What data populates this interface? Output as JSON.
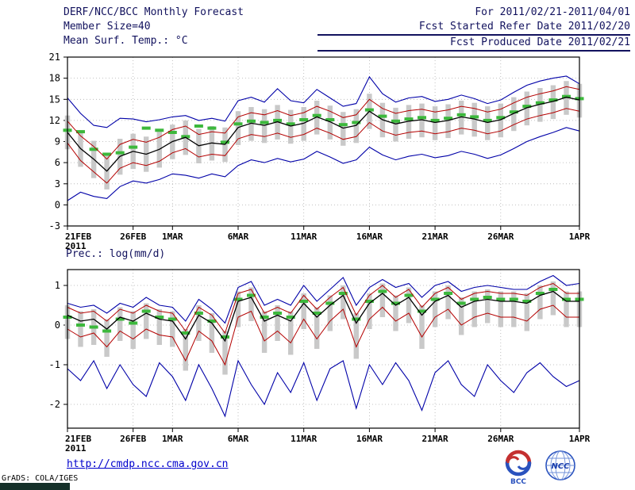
{
  "header": {
    "title": "DERF/NCC/BCC Monthly Forecast",
    "member_size": "Member Size=40",
    "temp_label": "Mean Surf. Temp.: °C",
    "for_range": "For 2011/02/21-2011/04/01",
    "refer_date": "Fcst Started Refer Date 2011/02/20",
    "produced_date": "Fcst Produced Date 2011/02/21"
  },
  "footer": {
    "url": "http://cmdp.ncc.cma.gov.cn",
    "credit": "GrADS: COLA/IGES",
    "bcc_logo_label": "BCC",
    "ncc_logo_label": "NCC"
  },
  "colors": {
    "ensemble_min_max": "#0000a8",
    "sigma_band": "#b40000",
    "ensemble_mean": "#000000",
    "reference_dash": "#3cb83c",
    "spread_bar": "#c9c9c9",
    "header_text": "#12125e",
    "link": "#0000cc"
  },
  "chart_data": [
    {
      "type": "line",
      "title": "Mean Surf. Temp.: °C",
      "xlabel": "",
      "ylabel": "°C",
      "ylim": [
        -3,
        21
      ],
      "yticks": [
        -3,
        0,
        3,
        6,
        9,
        12,
        15,
        18,
        21
      ],
      "grid": true,
      "n_days": 40,
      "x_tick_days": [
        0,
        5,
        8,
        13,
        18,
        23,
        28,
        33,
        39
      ],
      "x_tick_labels": [
        "21FEB",
        "26FEB",
        "1MAR",
        "6MAR",
        "11MAR",
        "16MAR",
        "21MAR",
        "26MAR",
        "1APR"
      ],
      "x_sub_label": "2011",
      "series": [
        {
          "name": "ensemble-max",
          "color": "#0000a8",
          "values": [
            15.2,
            13.0,
            11.3,
            11.0,
            12.3,
            12.2,
            11.8,
            12.1,
            12.5,
            12.7,
            12.0,
            12.3,
            11.9,
            14.8,
            15.3,
            14.6,
            16.5,
            14.8,
            14.5,
            16.4,
            15.2,
            14.0,
            14.4,
            18.2,
            15.8,
            14.6,
            15.2,
            15.4,
            14.7,
            15.0,
            15.6,
            15.1,
            14.4,
            14.9,
            16.0,
            17.0,
            17.6,
            18.0,
            18.3,
            17.2
          ]
        },
        {
          "name": "plus-sigma",
          "color": "#b40000",
          "values": [
            11.9,
            9.8,
            8.3,
            6.5,
            8.6,
            9.3,
            8.9,
            9.6,
            10.7,
            11.2,
            10.0,
            10.4,
            10.2,
            12.5,
            13.1,
            12.8,
            13.4,
            12.7,
            13.1,
            14.0,
            13.3,
            12.4,
            12.8,
            15.0,
            13.7,
            13.0,
            13.4,
            13.6,
            13.2,
            13.5,
            14.0,
            13.7,
            13.2,
            13.6,
            14.5,
            15.3,
            15.8,
            16.2,
            16.8,
            16.4
          ]
        },
        {
          "name": "ensemble-mean",
          "color": "#000000",
          "values": [
            10.3,
            8.0,
            6.5,
            4.8,
            6.9,
            7.6,
            7.2,
            7.9,
            9.0,
            9.6,
            8.4,
            8.8,
            8.6,
            11.0,
            11.6,
            11.3,
            11.8,
            11.2,
            11.6,
            12.5,
            11.8,
            10.9,
            11.3,
            13.3,
            12.1,
            11.5,
            11.9,
            12.1,
            11.7,
            12.0,
            12.5,
            12.2,
            11.7,
            12.1,
            13.0,
            13.8,
            14.3,
            14.7,
            15.3,
            14.9
          ]
        },
        {
          "name": "minus-sigma",
          "color": "#b40000",
          "values": [
            8.8,
            6.3,
            4.7,
            3.1,
            5.2,
            6.0,
            5.6,
            6.2,
            7.4,
            8.0,
            6.8,
            7.2,
            7.0,
            9.4,
            10.0,
            9.7,
            10.2,
            9.6,
            10.0,
            10.9,
            10.2,
            9.3,
            9.7,
            11.7,
            10.5,
            9.9,
            10.3,
            10.5,
            10.1,
            10.4,
            10.9,
            10.6,
            10.1,
            10.5,
            11.4,
            12.2,
            12.7,
            13.1,
            13.7,
            13.3
          ]
        },
        {
          "name": "ensemble-min",
          "color": "#0000a8",
          "values": [
            0.6,
            1.8,
            1.2,
            0.9,
            2.6,
            3.4,
            3.1,
            3.6,
            4.4,
            4.2,
            3.8,
            4.4,
            4.0,
            5.6,
            6.4,
            6.0,
            6.6,
            6.1,
            6.5,
            7.6,
            6.8,
            5.9,
            6.4,
            8.2,
            7.1,
            6.4,
            6.9,
            7.2,
            6.7,
            7.0,
            7.6,
            7.2,
            6.6,
            7.1,
            8.0,
            9.0,
            9.7,
            10.3,
            11.0,
            10.5
          ]
        },
        {
          "name": "reference",
          "color": "#3cb83c",
          "style": "dash",
          "values": [
            10.6,
            10.4,
            7.9,
            7.2,
            7.4,
            8.2,
            10.9,
            10.6,
            10.3,
            9.7,
            11.2,
            10.9,
            8.9,
            11.5,
            11.9,
            11.7,
            12.0,
            11.5,
            12.1,
            12.7,
            12.1,
            11.4,
            11.7,
            13.5,
            12.6,
            11.9,
            12.2,
            12.4,
            12.0,
            12.3,
            12.8,
            12.5,
            12.0,
            12.4,
            13.2,
            14.0,
            14.5,
            14.9,
            15.4,
            15.1
          ]
        },
        {
          "name": "spread-top",
          "color": "#c9c9c9",
          "values": [
            12.7,
            10.6,
            9.1,
            7.4,
            9.4,
            10.1,
            9.7,
            10.4,
            11.4,
            12.0,
            10.8,
            11.2,
            11.0,
            13.3,
            13.9,
            13.6,
            14.2,
            13.5,
            13.9,
            14.8,
            14.1,
            13.2,
            13.6,
            15.8,
            14.5,
            13.8,
            14.2,
            14.4,
            14.0,
            14.3,
            14.8,
            14.5,
            14.0,
            14.4,
            15.3,
            16.1,
            16.6,
            17.0,
            17.6,
            17.2
          ]
        },
        {
          "name": "spread-bottom",
          "color": "#c9c9c9",
          "values": [
            7.9,
            5.4,
            3.8,
            2.2,
            4.3,
            5.1,
            4.7,
            5.3,
            6.5,
            7.1,
            5.9,
            6.3,
            6.1,
            8.5,
            9.1,
            8.8,
            9.3,
            8.7,
            9.1,
            10.0,
            9.3,
            8.4,
            8.8,
            10.8,
            9.6,
            9.0,
            9.4,
            9.6,
            9.2,
            9.5,
            10.0,
            9.7,
            9.2,
            9.6,
            10.5,
            11.3,
            11.8,
            12.2,
            12.8,
            12.4
          ]
        }
      ]
    },
    {
      "type": "line",
      "title": "Prec.: log(mm/d)",
      "xlabel": "",
      "ylabel": "log(mm/d)",
      "ylim": [
        -2.6,
        1.4
      ],
      "yticks": [
        -2,
        -1,
        0,
        1
      ],
      "grid": true,
      "n_days": 40,
      "x_tick_days": [
        0,
        5,
        8,
        13,
        18,
        23,
        28,
        33,
        39
      ],
      "x_tick_labels": [
        "21FEB",
        "26FEB",
        "1MAR",
        "6MAR",
        "11MAR",
        "16MAR",
        "21MAR",
        "26MAR",
        "1APR"
      ],
      "x_sub_label": "2011",
      "series": [
        {
          "name": "ensemble-max",
          "color": "#0000a8",
          "values": [
            0.55,
            0.45,
            0.5,
            0.3,
            0.55,
            0.45,
            0.7,
            0.5,
            0.45,
            0.1,
            0.65,
            0.4,
            0.05,
            0.95,
            1.1,
            0.5,
            0.65,
            0.5,
            1.0,
            0.6,
            0.9,
            1.2,
            0.5,
            0.95,
            1.15,
            0.95,
            1.05,
            0.7,
            1.0,
            1.1,
            0.85,
            0.95,
            1.0,
            0.95,
            0.9,
            0.9,
            1.1,
            1.25,
            1.0,
            1.05
          ]
        },
        {
          "name": "plus-sigma",
          "color": "#b40000",
          "values": [
            0.45,
            0.3,
            0.35,
            0.1,
            0.4,
            0.3,
            0.5,
            0.35,
            0.3,
            -0.15,
            0.45,
            0.25,
            -0.2,
            0.8,
            0.9,
            0.3,
            0.45,
            0.3,
            0.75,
            0.4,
            0.7,
            0.95,
            0.25,
            0.75,
            1.0,
            0.7,
            0.9,
            0.45,
            0.8,
            0.95,
            0.65,
            0.8,
            0.85,
            0.8,
            0.8,
            0.75,
            0.95,
            1.05,
            0.8,
            0.8
          ]
        },
        {
          "name": "ensemble-mean",
          "color": "#000000",
          "values": [
            0.25,
            0.1,
            0.15,
            -0.1,
            0.2,
            0.1,
            0.3,
            0.15,
            0.1,
            -0.35,
            0.25,
            0.05,
            -0.4,
            0.6,
            0.7,
            0.1,
            0.25,
            0.1,
            0.55,
            0.2,
            0.5,
            0.75,
            0.05,
            0.55,
            0.8,
            0.5,
            0.7,
            0.25,
            0.6,
            0.75,
            0.45,
            0.6,
            0.65,
            0.6,
            0.6,
            0.55,
            0.75,
            0.85,
            0.6,
            0.6
          ]
        },
        {
          "name": "minus-sigma",
          "color": "#b40000",
          "values": [
            -0.1,
            -0.3,
            -0.2,
            -0.55,
            -0.15,
            -0.35,
            -0.1,
            -0.25,
            -0.3,
            -0.9,
            -0.15,
            -0.4,
            -1.0,
            0.2,
            0.35,
            -0.4,
            -0.15,
            -0.45,
            0.15,
            -0.35,
            0.1,
            0.4,
            -0.55,
            0.15,
            0.45,
            0.1,
            0.3,
            -0.3,
            0.2,
            0.4,
            0.0,
            0.2,
            0.3,
            0.2,
            0.2,
            0.1,
            0.4,
            0.5,
            0.2,
            0.2
          ]
        },
        {
          "name": "ensemble-min",
          "color": "#0000a8",
          "values": [
            -1.1,
            -1.4,
            -0.9,
            -1.6,
            -1.0,
            -1.5,
            -1.8,
            -0.95,
            -1.3,
            -1.9,
            -1.0,
            -1.6,
            -2.3,
            -0.9,
            -1.5,
            -2.0,
            -1.2,
            -1.7,
            -0.95,
            -1.9,
            -1.1,
            -0.9,
            -2.1,
            -1.0,
            -1.5,
            -0.95,
            -1.4,
            -2.15,
            -1.2,
            -0.9,
            -1.5,
            -1.8,
            -1.0,
            -1.4,
            -1.7,
            -1.2,
            -0.95,
            -1.3,
            -1.55,
            -1.4
          ]
        },
        {
          "name": "reference",
          "color": "#3cb83c",
          "style": "dash",
          "values": [
            0.2,
            0.0,
            -0.05,
            -0.15,
            0.15,
            0.05,
            0.35,
            0.2,
            0.15,
            -0.2,
            0.3,
            0.1,
            -0.3,
            0.65,
            0.75,
            0.2,
            0.3,
            0.2,
            0.6,
            0.3,
            0.55,
            0.8,
            0.15,
            0.6,
            0.85,
            0.55,
            0.75,
            0.35,
            0.65,
            0.8,
            0.55,
            0.65,
            0.7,
            0.65,
            0.65,
            0.6,
            0.8,
            0.9,
            0.65,
            0.65
          ]
        },
        {
          "name": "spread-top",
          "color": "#c9c9c9",
          "values": [
            0.5,
            0.35,
            0.4,
            0.15,
            0.45,
            0.35,
            0.55,
            0.4,
            0.35,
            -0.1,
            0.5,
            0.3,
            -0.15,
            0.85,
            0.95,
            0.35,
            0.5,
            0.35,
            0.8,
            0.45,
            0.75,
            1.0,
            0.3,
            0.8,
            1.05,
            0.75,
            0.95,
            0.5,
            0.85,
            1.0,
            0.7,
            0.85,
            0.9,
            0.85,
            0.85,
            0.8,
            1.0,
            1.1,
            0.85,
            0.85
          ]
        },
        {
          "name": "spread-bottom",
          "color": "#c9c9c9",
          "values": [
            -0.35,
            -0.55,
            -0.5,
            -0.8,
            -0.4,
            -0.6,
            -0.35,
            -0.5,
            -0.55,
            -1.15,
            -0.4,
            -0.7,
            -1.25,
            -0.05,
            0.1,
            -0.7,
            -0.4,
            -0.75,
            -0.1,
            -0.6,
            -0.15,
            0.15,
            -0.85,
            -0.1,
            0.2,
            -0.15,
            0.05,
            -0.6,
            -0.05,
            0.15,
            -0.25,
            -0.05,
            0.05,
            -0.05,
            -0.05,
            -0.15,
            0.15,
            0.25,
            -0.05,
            -0.05
          ]
        }
      ]
    }
  ]
}
